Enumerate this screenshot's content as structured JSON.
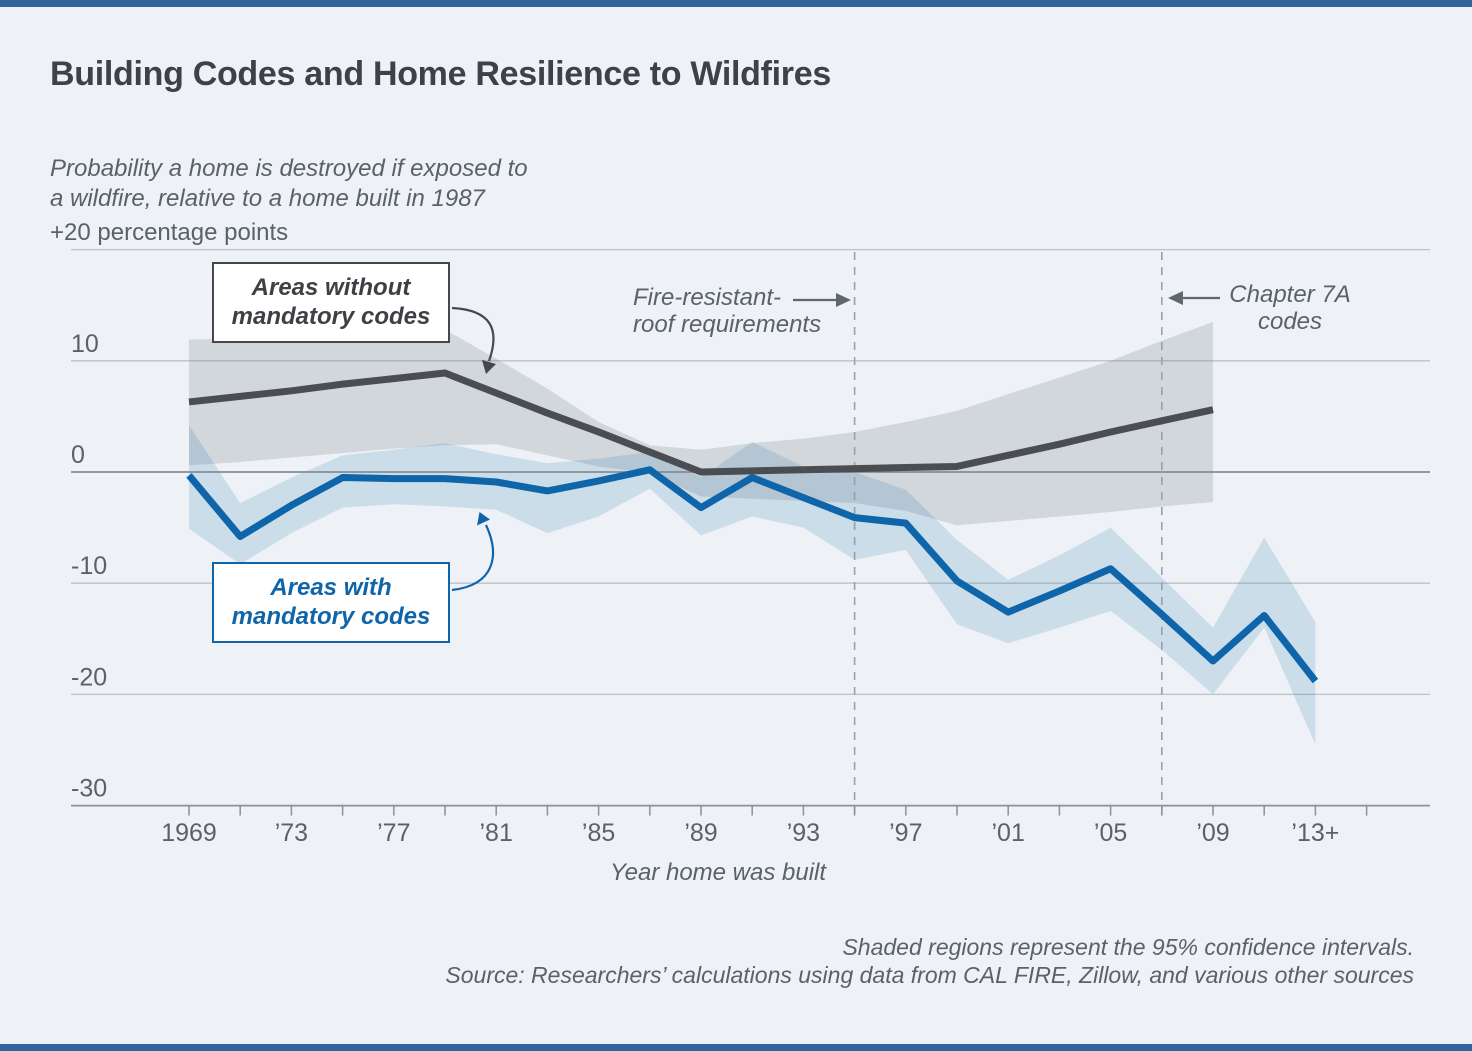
{
  "page": {
    "title": "Building Codes and Home Resilience to Wildfires",
    "subtitle_line1": "Probability a home is destroyed if exposed to",
    "subtitle_line2": "a wildfire, relative to a home built in 1987",
    "unit_label": "+20 percentage points",
    "x_axis_title": "Year home was built",
    "footnote_line1": "Shaded regions represent the 95% confidence intervals.",
    "footnote_line2": "Source: Researchers’ calculations using data from CAL FIRE, Zillow, and various other sources"
  },
  "annotations": {
    "without_codes": {
      "line1": "Areas without",
      "line2": "mandatory codes"
    },
    "with_codes": {
      "line1": "Areas with",
      "line2": "mandatory codes"
    },
    "event_roof": {
      "line1": "Fire-resistant-",
      "line2": "roof requirements",
      "year": 1995
    },
    "event_chapter7a": {
      "line1": "Chapter 7A",
      "line2": "codes",
      "year": 2007
    }
  },
  "colors": {
    "background": "#eef2f6",
    "accent_bar": "#31649a",
    "title_color": "#3e4247",
    "text_muted": "#5a6169",
    "line_without": "#4a4e53",
    "line_with": "#0f65a9",
    "band_without": "rgba(100,108,118,0.20)",
    "band_with": "rgba(15,101,169,0.15)",
    "gridline": "#bcc2c9",
    "zero_line": "#858c95",
    "axis": "#8a919a",
    "dashed": "#98a0a9",
    "arrow_gray": "#5f666d",
    "arrow_dark": "#44484e"
  },
  "chart_data": {
    "type": "line",
    "title": "Building Codes and Home Resilience to Wildfires",
    "xlabel": "Year home was built",
    "ylabel": "+20 percentage points (probability a home is destroyed if exposed to a wildfire, relative to a home built in 1987)",
    "ylim": [
      -30,
      20
    ],
    "grid": true,
    "x": [
      1969,
      1971,
      1973,
      1975,
      1977,
      1979,
      1981,
      1983,
      1985,
      1987,
      1989,
      1991,
      1993,
      1995,
      1997,
      1999,
      2001,
      2003,
      2005,
      2007,
      2009,
      2011,
      2013
    ],
    "series": [
      {
        "name": "Areas without mandatory codes",
        "values": [
          6.3,
          6.8,
          7.3,
          7.9,
          8.4,
          8.9,
          7.1,
          5.3,
          3.6,
          1.8,
          0.0,
          0.1,
          0.2,
          0.3,
          0.4,
          0.5,
          1.5,
          2.5,
          3.6,
          4.6,
          5.6,
          null,
          null
        ],
        "ci_upper": [
          11.9,
          12.0,
          12.2,
          12.5,
          12.7,
          12.8,
          10.2,
          7.5,
          4.5,
          2.4,
          2.0,
          2.6,
          3.0,
          3.6,
          4.5,
          5.5,
          7.0,
          8.5,
          10.0,
          11.8,
          13.5,
          null,
          null
        ],
        "ci_lower": [
          0.6,
          0.9,
          1.3,
          1.7,
          2.1,
          2.4,
          2.5,
          1.5,
          0.5,
          -0.1,
          -2.2,
          -2.4,
          -2.6,
          -2.8,
          -3.5,
          -4.8,
          -4.4,
          -4.0,
          -3.6,
          -3.1,
          -2.7,
          null,
          null
        ]
      },
      {
        "name": "Areas with mandatory codes",
        "values": [
          -0.3,
          -5.8,
          -3.0,
          -0.5,
          -0.6,
          -0.6,
          -0.9,
          -1.7,
          -0.8,
          0.2,
          -3.2,
          -0.5,
          -2.3,
          -4.1,
          -4.6,
          -9.8,
          -12.6,
          -10.7,
          -8.7,
          -12.8,
          -17.0,
          -12.9,
          -18.8
        ],
        "ci_upper": [
          4.2,
          -2.8,
          -0.5,
          1.5,
          2.0,
          2.6,
          1.6,
          0.8,
          1.2,
          1.8,
          -0.5,
          2.7,
          0.5,
          0.0,
          -1.6,
          -6.1,
          -9.7,
          -7.5,
          -5.0,
          -9.5,
          -14.0,
          -5.9,
          -13.5
        ],
        "ci_lower": [
          -5.1,
          -8.3,
          -5.5,
          -3.2,
          -2.9,
          -3.1,
          -3.4,
          -5.5,
          -4.0,
          -1.5,
          -5.7,
          -4.0,
          -5.0,
          -7.9,
          -7.0,
          -13.7,
          -15.4,
          -14.0,
          -12.5,
          -16.0,
          -20.0,
          -14.0,
          -24.5
        ]
      }
    ],
    "y_ticks": [
      {
        "v": 20,
        "label": ""
      },
      {
        "v": 10,
        "label": "10"
      },
      {
        "v": 0,
        "label": "0"
      },
      {
        "v": -10,
        "label": "-10"
      },
      {
        "v": -20,
        "label": "-20"
      },
      {
        "v": -30,
        "label": "-30"
      }
    ],
    "x_tick_labels": [
      {
        "year": 1969,
        "label": "1969"
      },
      {
        "year": 1973,
        "label": "’73"
      },
      {
        "year": 1977,
        "label": "’77"
      },
      {
        "year": 1981,
        "label": "’81"
      },
      {
        "year": 1985,
        "label": "’85"
      },
      {
        "year": 1989,
        "label": "’89"
      },
      {
        "year": 1993,
        "label": "’93"
      },
      {
        "year": 1997,
        "label": "’97"
      },
      {
        "year": 2001,
        "label": "’01"
      },
      {
        "year": 2005,
        "label": "’05"
      },
      {
        "year": 2009,
        "label": "’09"
      },
      {
        "year": 2013,
        "label": "’13+"
      }
    ],
    "minor_tick_years": [
      1969,
      1971,
      1973,
      1975,
      1977,
      1979,
      1981,
      1983,
      1985,
      1987,
      1989,
      1991,
      1993,
      1995,
      1997,
      1999,
      2001,
      2003,
      2005,
      2007,
      2009,
      2011,
      2013,
      2015
    ],
    "reference_years": [
      1995,
      2007
    ],
    "legend_position": "annotated-on-chart"
  }
}
